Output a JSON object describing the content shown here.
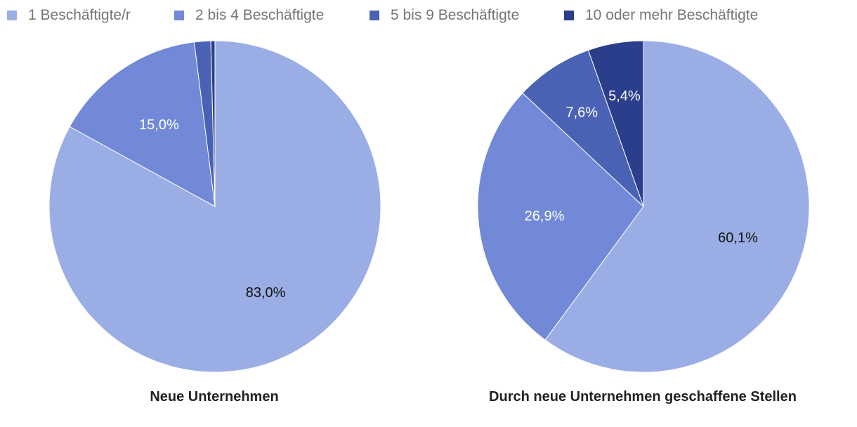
{
  "legend": [
    {
      "label": "1 Beschäftigte/r",
      "color": "#9badE5"
    },
    {
      "label": "2 bis 4 Beschäftigte",
      "color": "#7189d6"
    },
    {
      "label": "5 bis 9 Beschäftigte",
      "color": "#4a62b3"
    },
    {
      "label": "10 oder mehr Beschäftigte",
      "color": "#2b3e8c"
    }
  ],
  "chart_data": [
    {
      "type": "pie",
      "title": "Neue Unternehmen",
      "categories": [
        "1 Beschäftigte/r",
        "2 bis 4 Beschäftigte",
        "5 bis 9 Beschäftigte",
        "10 oder mehr Beschäftigte"
      ],
      "values": [
        83.0,
        15.0,
        1.6,
        0.4
      ],
      "data_labels": [
        "83,0%",
        "15,0%",
        "",
        ""
      ],
      "label_colors": [
        "#111111",
        "#ffffff",
        "#ffffff",
        "#ffffff"
      ],
      "colors": [
        "#9badE5",
        "#7189d6",
        "#4a62b3",
        "#2b3e8c"
      ]
    },
    {
      "type": "pie",
      "title": "Durch neue Unternehmen geschaffene Stellen",
      "categories": [
        "1 Beschäftigte/r",
        "2 bis 4 Beschäftigte",
        "5 bis 9 Beschäftigte",
        "10 oder mehr Beschäftigte"
      ],
      "values": [
        60.1,
        26.9,
        7.6,
        5.4
      ],
      "data_labels": [
        "60,1%",
        "26,9%",
        "7,6%",
        "5,4%"
      ],
      "label_colors": [
        "#111111",
        "#ffffff",
        "#ffffff",
        "#ffffff"
      ],
      "colors": [
        "#9badE5",
        "#7189d6",
        "#4a62b3",
        "#2b3e8c"
      ]
    }
  ]
}
